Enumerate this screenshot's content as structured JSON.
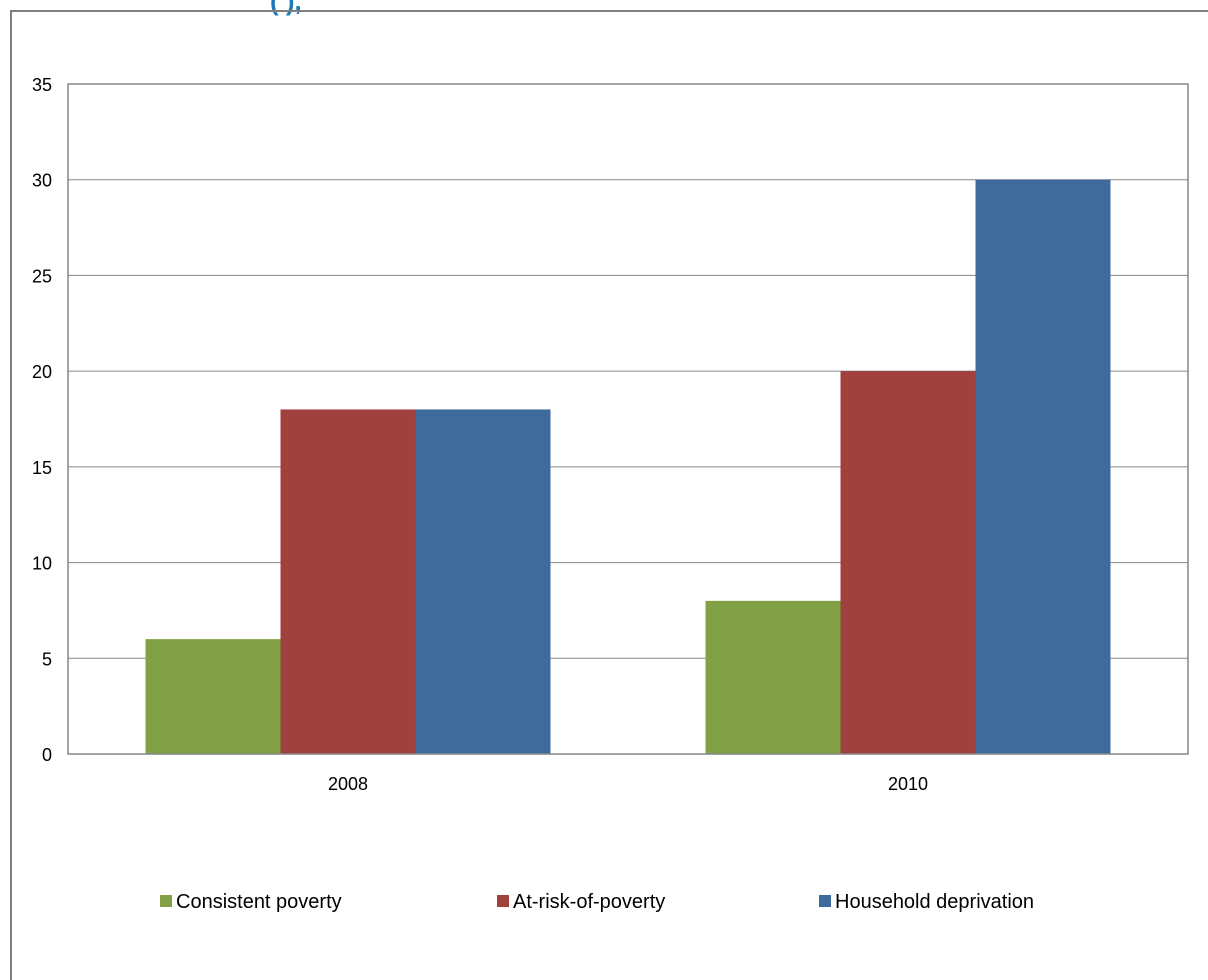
{
  "header": {
    "title_fragment": "(    ),"
  },
  "chart_data": {
    "type": "bar",
    "title": "",
    "xlabel": "",
    "ylabel": "",
    "categories": [
      "2008",
      "2010"
    ],
    "ylim": [
      0,
      35
    ],
    "yticks": [
      0,
      5,
      10,
      15,
      20,
      25,
      30,
      35
    ],
    "grid": true,
    "legend_position": "bottom",
    "series": [
      {
        "name": "Consistent poverty",
        "color": "#82a046",
        "values": [
          6,
          8
        ]
      },
      {
        "name": "At-risk-of-poverty",
        "color": "#a0413e",
        "values": [
          18,
          20
        ]
      },
      {
        "name": "Household deprivation",
        "color": "#3f6b9c",
        "values": [
          18,
          30
        ]
      }
    ]
  }
}
